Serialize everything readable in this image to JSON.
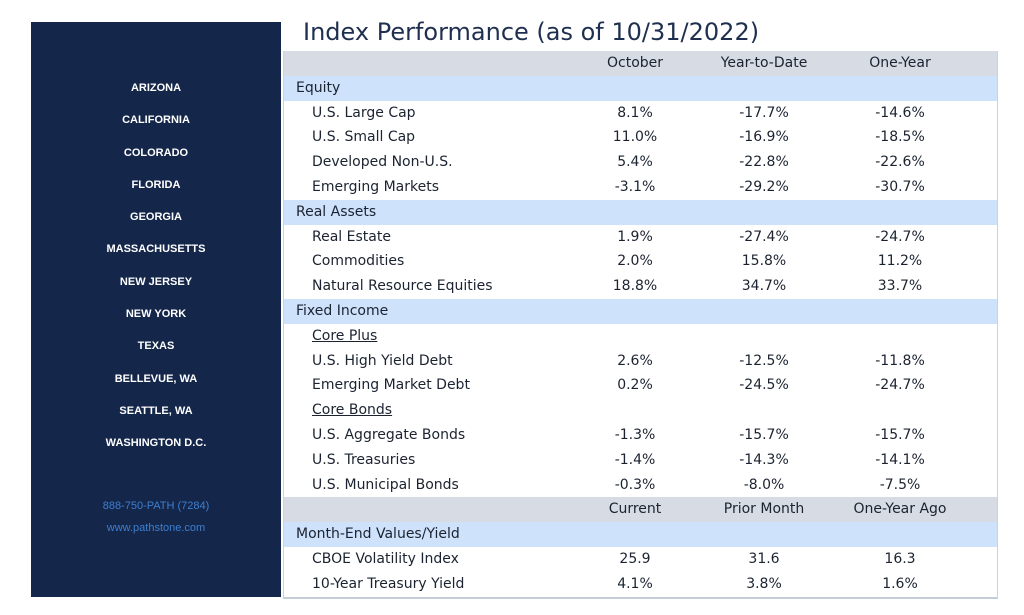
{
  "title": "Index Performance (as of 10/31/2022)",
  "sidebar": {
    "locations": [
      "ARIZONA",
      "CALIFORNIA",
      "COLORADO",
      "FLORIDA",
      "GEORGIA",
      "MASSACHUSETTS",
      "NEW JERSEY",
      "NEW YORK",
      "TEXAS",
      "BELLEVUE, WA",
      "SEATTLE, WA",
      "WASHINGTON D.C."
    ],
    "phone": "888-750-PATH (7284)",
    "website": "www.pathstone.com"
  },
  "colors": {
    "sidebar_bg": "#14264a",
    "header_bg": "#d6dbe4",
    "group_bg": "#cfe2fb",
    "contact_text": "#3e7fd0"
  },
  "chart_data": {
    "type": "table",
    "title": "Index Performance (as of 10/31/2022)",
    "columns": [
      "October",
      "Year-to-Date",
      "One-Year"
    ],
    "sections": [
      {
        "name": "Equity",
        "rows": [
          {
            "label": "U.S. Large Cap",
            "october": "8.1%",
            "ytd": "-17.7%",
            "one_year": "-14.6%"
          },
          {
            "label": "U.S. Small Cap",
            "october": "11.0%",
            "ytd": "-16.9%",
            "one_year": "-18.5%"
          },
          {
            "label": "Developed Non-U.S.",
            "october": "5.4%",
            "ytd": "-22.8%",
            "one_year": "-22.6%"
          },
          {
            "label": "Emerging Markets",
            "october": "-3.1%",
            "ytd": "-29.2%",
            "one_year": "-30.7%"
          }
        ]
      },
      {
        "name": "Real Assets",
        "rows": [
          {
            "label": "Real Estate",
            "october": "1.9%",
            "ytd": "-27.4%",
            "one_year": "-24.7%"
          },
          {
            "label": "Commodities",
            "october": "2.0%",
            "ytd": "15.8%",
            "one_year": "11.2%"
          },
          {
            "label": "Natural Resource Equities",
            "october": "18.8%",
            "ytd": "34.7%",
            "one_year": "33.7%"
          }
        ]
      },
      {
        "name": "Fixed Income",
        "subgroups": [
          {
            "name": "Core Plus",
            "rows": [
              {
                "label": "U.S. High Yield Debt",
                "october": "2.6%",
                "ytd": "-12.5%",
                "one_year": "-11.8%"
              },
              {
                "label": "Emerging Market Debt",
                "october": "0.2%",
                "ytd": "-24.5%",
                "one_year": "-24.7%"
              }
            ]
          },
          {
            "name": "Core Bonds",
            "rows": [
              {
                "label": "U.S. Aggregate Bonds",
                "october": "-1.3%",
                "ytd": "-15.7%",
                "one_year": "-15.7%"
              },
              {
                "label": "U.S. Treasuries",
                "october": "-1.4%",
                "ytd": "-14.3%",
                "one_year": "-14.1%"
              },
              {
                "label": "U.S. Municipal Bonds",
                "october": "-0.3%",
                "ytd": "-8.0%",
                "one_year": "-7.5%"
              }
            ]
          }
        ]
      }
    ],
    "month_end": {
      "columns": [
        "Current",
        "Prior Month",
        "One-Year Ago"
      ],
      "name": "Month-End Values/Yield",
      "rows": [
        {
          "label": "CBOE Volatility Index",
          "current": "25.9",
          "prior_month": "31.6",
          "one_year_ago": "16.3"
        },
        {
          "label": "10-Year Treasury Yield",
          "current": "4.1%",
          "prior_month": "3.8%",
          "one_year_ago": "1.6%"
        }
      ]
    }
  }
}
